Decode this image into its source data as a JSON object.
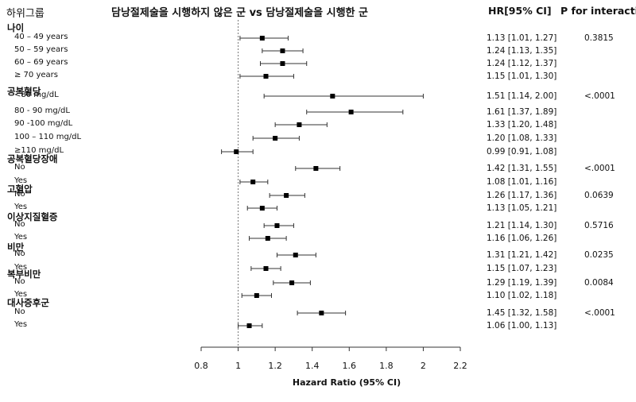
{
  "header": {
    "subgroup_label": "하위그룹",
    "title": "담낭절제술을 시행하지 않은 군 vs 담낭절제술을 시행한 군",
    "hr_label": "HR[95% CI]",
    "p_label": "P for interaction"
  },
  "chart_data": {
    "type": "forest",
    "title": "담낭절제술을 시행하지 않은 군 vs 담낭절제술을 시행한 군",
    "xlabel": "Hazard Ratio (95% CI)",
    "xlim": [
      0.8,
      2.2
    ],
    "xticks": [
      "0.8",
      "1",
      "1.2",
      "1.4",
      "1.6",
      "1.8",
      "2",
      "2.2"
    ],
    "xtick_values": [
      0.8,
      1.0,
      1.2,
      1.4,
      1.6,
      1.8,
      2.0,
      2.2
    ],
    "reference_line": 1,
    "groups": [
      {
        "name": "나이",
        "p": "0.3815",
        "rows": [
          {
            "label": "40 – 49 years",
            "hr": 1.13,
            "lo": 1.01,
            "hi": 1.27,
            "text": "1.13 [1.01, 1.27]"
          },
          {
            "label": "50 – 59 years",
            "hr": 1.24,
            "lo": 1.13,
            "hi": 1.35,
            "text": "1.24 [1.13, 1.35]"
          },
          {
            "label": "60 – 69 years",
            "hr": 1.24,
            "lo": 1.12,
            "hi": 1.37,
            "text": "1.24 [1.12, 1.37]"
          },
          {
            "label": "≥ 70 years",
            "hr": 1.15,
            "lo": 1.01,
            "hi": 1.3,
            "text": "1.15 [1.01, 1.30]"
          }
        ]
      },
      {
        "name": "공복혈당",
        "p": "<.0001",
        "rows": [
          {
            "label": "<80 mg/dL",
            "hr": 1.51,
            "lo": 1.14,
            "hi": 2.0,
            "text": "1.51 [1.14, 2.00]"
          },
          {
            "label": "80 - 90 mg/dL",
            "hr": 1.61,
            "lo": 1.37,
            "hi": 1.89,
            "text": "1.61 [1.37, 1.89]"
          },
          {
            "label": "90 -100 mg/dL",
            "hr": 1.33,
            "lo": 1.2,
            "hi": 1.48,
            "text": "1.33 [1.20, 1.48]"
          },
          {
            "label": "100 – 110 mg/dL",
            "hr": 1.2,
            "lo": 1.08,
            "hi": 1.33,
            "text": "1.20 [1.08, 1.33]"
          },
          {
            "label": "≥110 mg/dL",
            "hr": 0.99,
            "lo": 0.91,
            "hi": 1.08,
            "text": "0.99 [0.91, 1.08]"
          }
        ]
      },
      {
        "name": "공복혈당장애",
        "p": "<.0001",
        "rows": [
          {
            "label": "No",
            "hr": 1.42,
            "lo": 1.31,
            "hi": 1.55,
            "text": "1.42 [1.31, 1.55]"
          },
          {
            "label": "Yes",
            "hr": 1.08,
            "lo": 1.01,
            "hi": 1.16,
            "text": "1.08 [1.01, 1.16]"
          }
        ]
      },
      {
        "name": "고혈압",
        "p": "0.0639",
        "rows": [
          {
            "label": "No",
            "hr": 1.26,
            "lo": 1.17,
            "hi": 1.36,
            "text": "1.26 [1.17, 1.36]"
          },
          {
            "label": "Yes",
            "hr": 1.13,
            "lo": 1.05,
            "hi": 1.21,
            "text": "1.13 [1.05, 1.21]"
          }
        ]
      },
      {
        "name": "이상지질혈증",
        "p": "0.5716",
        "rows": [
          {
            "label": "No",
            "hr": 1.21,
            "lo": 1.14,
            "hi": 1.3,
            "text": "1.21 [1.14, 1.30]"
          },
          {
            "label": "Yes",
            "hr": 1.16,
            "lo": 1.06,
            "hi": 1.26,
            "text": "1.16 [1.06, 1.26]"
          }
        ]
      },
      {
        "name": "비만",
        "p": "0.0235",
        "rows": [
          {
            "label": "No",
            "hr": 1.31,
            "lo": 1.21,
            "hi": 1.42,
            "text": "1.31 [1.21, 1.42]"
          },
          {
            "label": "Yes",
            "hr": 1.15,
            "lo": 1.07,
            "hi": 1.23,
            "text": "1.15 [1.07, 1.23]"
          }
        ]
      },
      {
        "name": "복부비만",
        "p": "0.0084",
        "rows": [
          {
            "label": "No",
            "hr": 1.29,
            "lo": 1.19,
            "hi": 1.39,
            "text": "1.29 [1.19, 1.39]"
          },
          {
            "label": "Yes",
            "hr": 1.1,
            "lo": 1.02,
            "hi": 1.18,
            "text": "1.10 [1.02, 1.18]"
          }
        ]
      },
      {
        "name": "대사증후군",
        "p": "<.0001",
        "rows": [
          {
            "label": "No",
            "hr": 1.45,
            "lo": 1.32,
            "hi": 1.58,
            "text": "1.45 [1.32, 1.58]"
          },
          {
            "label": "Yes",
            "hr": 1.06,
            "lo": 1.0,
            "hi": 1.13,
            "text": "1.06 [1.00, 1.13]"
          }
        ]
      }
    ]
  }
}
